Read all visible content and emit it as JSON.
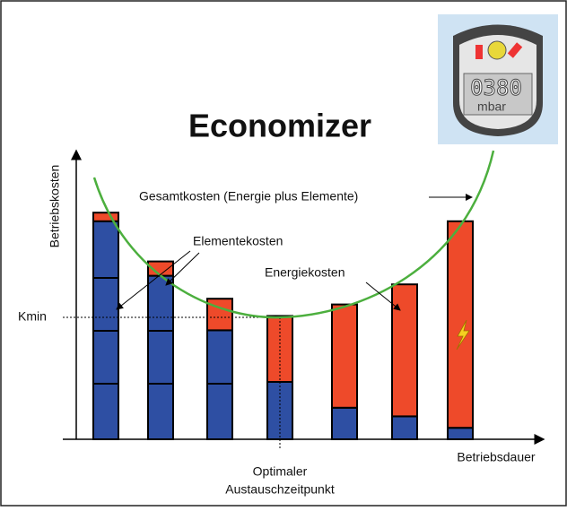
{
  "chart_data": {
    "type": "stacked-bar",
    "title": "Economizer",
    "y_label": "Betriebskosten",
    "x_label": "Betriebsdauer",
    "total_label": "Gesamtkosten (Energie plus Elemente)",
    "min_label": "Kmin",
    "optimum_label": [
      "Optimaler",
      "Austauschzeitpunkt"
    ],
    "categories": [
      null,
      null,
      null,
      null,
      null,
      null,
      null
    ],
    "ylim": [
      0,
      100
    ],
    "series": [
      {
        "name": "Elementekosten",
        "color": "#2e4fa3",
        "values": [
          76,
          57,
          38,
          20,
          11,
          8,
          4
        ]
      },
      {
        "name": "Energiekosten",
        "color": "#ee4a2a",
        "values": [
          3,
          5,
          11,
          23,
          36,
          46,
          72
        ]
      }
    ]
  },
  "device": {
    "display": "0380",
    "unit": "mbar"
  }
}
